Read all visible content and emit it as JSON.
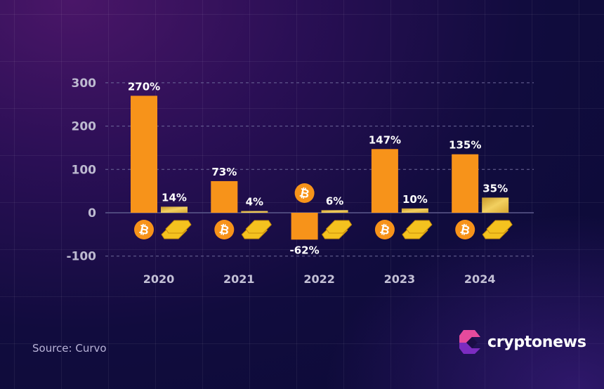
{
  "chart_data": {
    "type": "bar",
    "categories": [
      "2020",
      "2021",
      "2022",
      "2023",
      "2024"
    ],
    "series": [
      {
        "name": "bitcoin",
        "icon": "bitcoin-icon",
        "color": "#f7931a",
        "values": [
          270,
          73,
          -62,
          147,
          135
        ],
        "labels": [
          "270%",
          "73%",
          "-62%",
          "147%",
          "135%"
        ]
      },
      {
        "name": "gold",
        "icon": "gold-bars-icon",
        "color": "#e8b93a",
        "values": [
          14,
          4,
          6,
          10,
          35
        ],
        "labels": [
          "14%",
          "4%",
          "6%",
          "10%",
          "35%"
        ]
      }
    ],
    "yticks": [
      300,
      200,
      100,
      0,
      -100
    ],
    "ylim": [
      -100,
      300
    ],
    "grid": true
  },
  "source": "Source: Curvo",
  "brand": "cryptonews"
}
